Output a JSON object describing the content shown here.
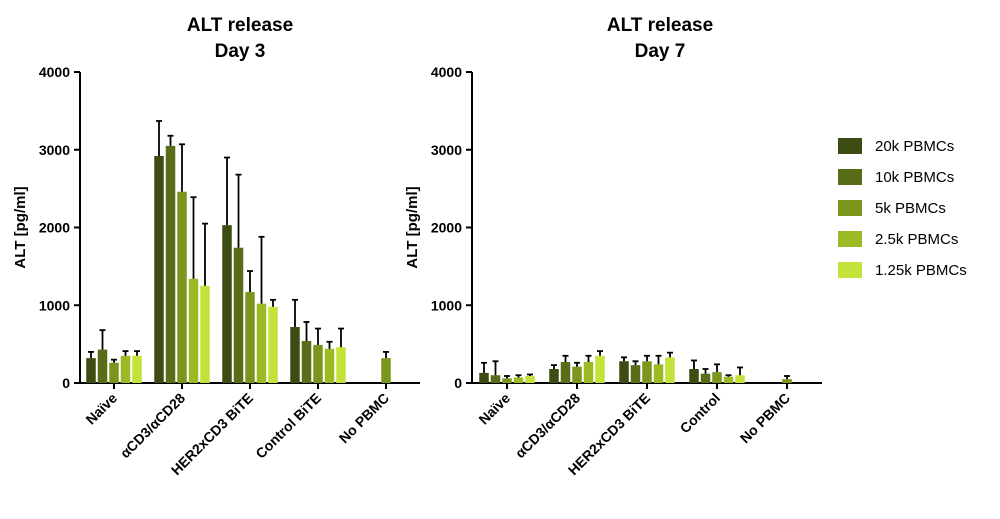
{
  "chart_data": [
    {
      "type": "bar",
      "title": "ALT release",
      "subtitle": "Day 3",
      "y_label": "ALT [pg/ml]",
      "categories": [
        "Naïve",
        "αCD3/αCD28",
        "HER2xCD3 BiTE",
        "Control BiTE",
        "No PBMC"
      ],
      "ylim": [
        0,
        4000
      ],
      "yticks": [
        0,
        1000,
        2000,
        3000,
        4000
      ],
      "legend": "right",
      "series": [
        {
          "name": "20k PBMCs",
          "color": "#3d4c12",
          "values": [
            320,
            2920,
            2030,
            720,
            null
          ],
          "errors": [
            80,
            450,
            870,
            350,
            null
          ]
        },
        {
          "name": "10k PBMCs",
          "color": "#576d17",
          "values": [
            430,
            3050,
            1740,
            540,
            null
          ],
          "errors": [
            250,
            130,
            940,
            245,
            null
          ]
        },
        {
          "name": "5k PBMCs",
          "color": "#7a961d",
          "values": [
            260,
            2460,
            1170,
            490,
            320
          ],
          "errors": [
            40,
            610,
            270,
            210,
            80
          ]
        },
        {
          "name": "2.5k PBMCs",
          "color": "#9bba24",
          "values": [
            350,
            1340,
            1020,
            440,
            null
          ],
          "errors": [
            60,
            1050,
            860,
            90,
            null
          ]
        },
        {
          "name": "1.25k PBMCs",
          "color": "#c3e33a",
          "values": [
            350,
            1250,
            980,
            460,
            null
          ],
          "errors": [
            60,
            800,
            90,
            240,
            null
          ]
        }
      ]
    },
    {
      "type": "bar",
      "title": "ALT release",
      "subtitle": "Day 7",
      "y_label": "ALT [pg/ml]",
      "categories": [
        "Naïve",
        "αCD3/αCD28",
        "HER2xCD3 BiTE",
        "Control",
        "No PBMC"
      ],
      "ylim": [
        0,
        4000
      ],
      "yticks": [
        0,
        1000,
        2000,
        3000,
        4000
      ],
      "legend": "right",
      "series": [
        {
          "name": "20k PBMCs",
          "color": "#3d4c12",
          "values": [
            130,
            180,
            280,
            180,
            null
          ],
          "errors": [
            130,
            50,
            50,
            110,
            null
          ]
        },
        {
          "name": "10k PBMCs",
          "color": "#576d17",
          "values": [
            100,
            270,
            230,
            120,
            null
          ],
          "errors": [
            180,
            80,
            50,
            60,
            null
          ]
        },
        {
          "name": "5k PBMCs",
          "color": "#7a961d",
          "values": [
            60,
            210,
            280,
            140,
            50
          ],
          "errors": [
            30,
            50,
            70,
            100,
            40
          ]
        },
        {
          "name": "2.5k PBMCs",
          "color": "#9bba24",
          "values": [
            70,
            270,
            240,
            80,
            null
          ],
          "errors": [
            30,
            80,
            110,
            20,
            null
          ]
        },
        {
          "name": "1.25k PBMCs",
          "color": "#c3e33a",
          "values": [
            90,
            350,
            330,
            100,
            null
          ],
          "errors": [
            20,
            60,
            60,
            100,
            null
          ]
        }
      ]
    }
  ]
}
